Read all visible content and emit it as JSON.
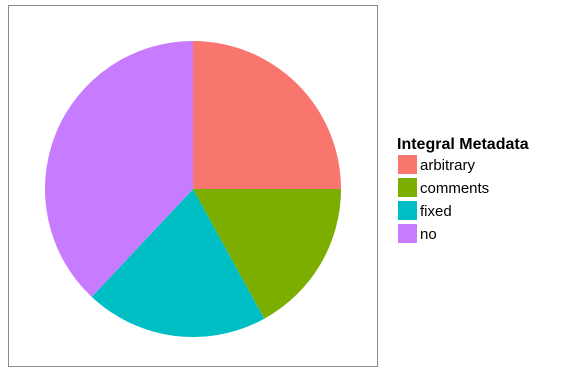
{
  "chart_data": {
    "type": "pie",
    "title": "",
    "legend_title": "Integral Metadata",
    "legend_position": "right",
    "start_angle": "12 o'clock",
    "direction": "clockwise",
    "grid": false,
    "categories": [
      "arbitrary",
      "comments",
      "fixed",
      "no"
    ],
    "values": [
      25,
      17,
      20,
      38
    ],
    "colors": [
      "#F8766D",
      "#7CAE00",
      "#00BFC4",
      "#C77CFF"
    ]
  }
}
